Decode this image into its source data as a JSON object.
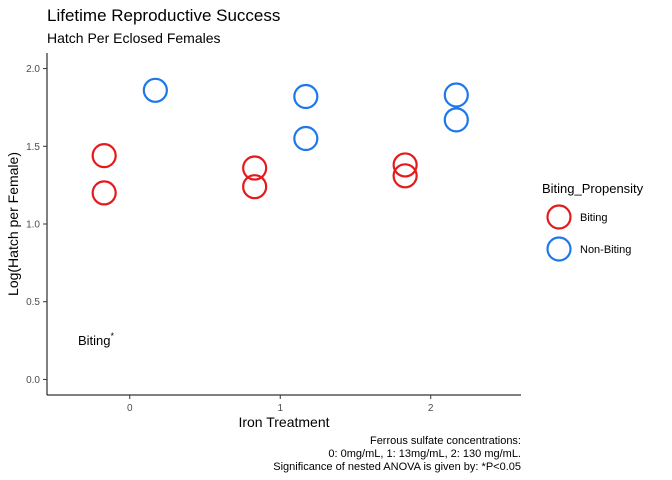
{
  "chart_data": {
    "type": "scatter",
    "title": "Lifetime Reproductive Success",
    "subtitle": "Hatch Per Eclosed Females",
    "xlabel": "Iron Treatment",
    "ylabel": "Log(Hatch per Female)",
    "x_ticks": [
      "0",
      "1",
      "2"
    ],
    "y_ticks": [
      "0.0",
      "0.5",
      "1.0",
      "1.5",
      "2.0"
    ],
    "xlim": [
      -0.55,
      2.6
    ],
    "ylim": [
      -0.1,
      2.1
    ],
    "grid": false,
    "legend": {
      "title": "Biting_Propensity",
      "placement": "right",
      "entries": [
        {
          "label": "Biting",
          "color": "#e41a1c"
        },
        {
          "label": "Non-Biting",
          "color": "#1f78e8"
        }
      ]
    },
    "series": [
      {
        "name": "Biting",
        "color": "#e41a1c",
        "points": [
          {
            "x": 0,
            "y": 1.44
          },
          {
            "x": 0,
            "y": 1.2
          },
          {
            "x": 1,
            "y": 1.36
          },
          {
            "x": 1,
            "y": 1.24
          },
          {
            "x": 2,
            "y": 1.38
          },
          {
            "x": 2,
            "y": 1.31
          }
        ]
      },
      {
        "name": "Non-Biting",
        "color": "#1f78e8",
        "points": [
          {
            "x": 0,
            "y": 1.86
          },
          {
            "x": 1,
            "y": 1.82
          },
          {
            "x": 1,
            "y": 1.55
          },
          {
            "x": 2,
            "y": 1.83
          },
          {
            "x": 2,
            "y": 1.67
          }
        ]
      }
    ],
    "annotation": {
      "text": "Biting",
      "superscript": "*"
    },
    "caption": [
      "Ferrous sulfate concentrations:",
      "0: 0mg/mL, 1: 13mg/mL, 2: 130 mg/mL.",
      "Significance of nested ANOVA is given by: *P<0.05"
    ]
  }
}
